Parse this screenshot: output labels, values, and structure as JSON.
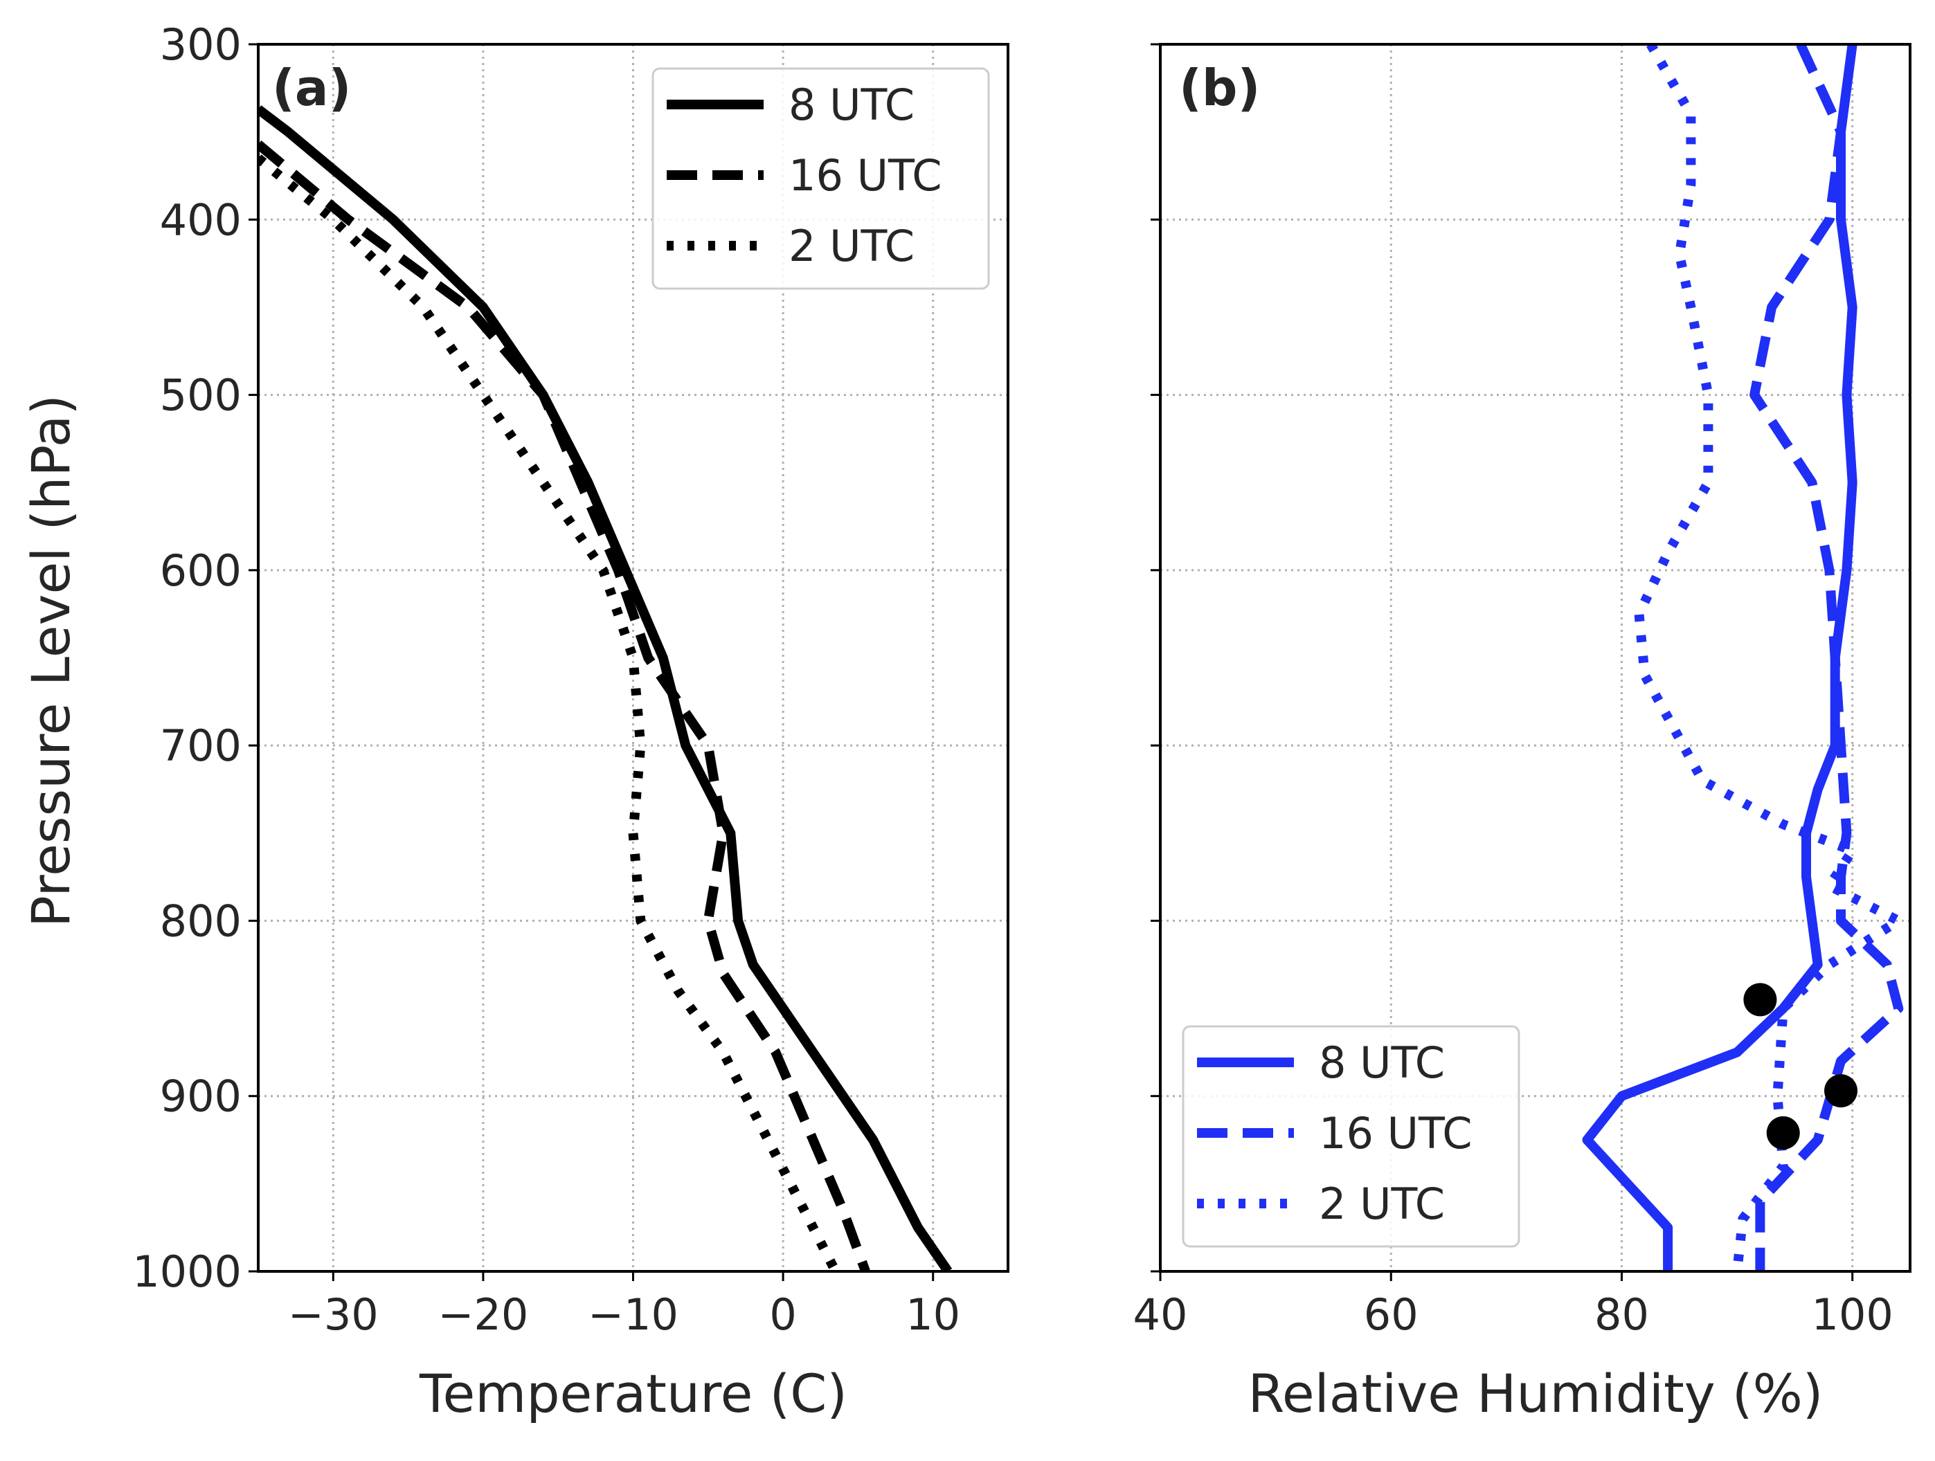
{
  "chart_data": [
    {
      "type": "line",
      "panel_label": "(a)",
      "xlabel": "Temperature (C)",
      "ylabel": "Pressure Level (hPa)",
      "xlim": [
        -35,
        15
      ],
      "ylim": [
        1000,
        300
      ],
      "xticks": [
        -30,
        -20,
        -10,
        0,
        10
      ],
      "xtick_labels": [
        "−30",
        "−20",
        "−10",
        "0",
        "10"
      ],
      "yticks": [
        300,
        400,
        500,
        600,
        700,
        800,
        900,
        1000
      ],
      "ytick_labels": [
        "300",
        "400",
        "500",
        "600",
        "700",
        "800",
        "900",
        "1000"
      ],
      "grid": true,
      "legend": "top-right",
      "color": "#000000",
      "series": [
        {
          "name": "8 UTC",
          "style": "solid",
          "points": [
            [
              -35,
              337
            ],
            [
              -33,
              350
            ],
            [
              -26,
              400
            ],
            [
              -20,
              450
            ],
            [
              -16,
              500
            ],
            [
              -13,
              550
            ],
            [
              -10.5,
              600
            ],
            [
              -8,
              650
            ],
            [
              -6.5,
              700
            ],
            [
              -3.5,
              750
            ],
            [
              -3,
              800
            ],
            [
              -2,
              825
            ],
            [
              2,
              875
            ],
            [
              6,
              925
            ],
            [
              9,
              975
            ],
            [
              11,
              1000
            ]
          ]
        },
        {
          "name": "16 UTC",
          "style": "dashed",
          "points": [
            [
              -35,
              357
            ],
            [
              -29,
              400
            ],
            [
              -21,
              450
            ],
            [
              -16,
              500
            ],
            [
              -13.5,
              550
            ],
            [
              -11,
              600
            ],
            [
              -9,
              650
            ],
            [
              -5,
              700
            ],
            [
              -4,
              750
            ],
            [
              -5,
              800
            ],
            [
              -4,
              830
            ],
            [
              -0.5,
              875
            ],
            [
              2,
              925
            ],
            [
              4,
              965
            ],
            [
              5.5,
              1000
            ]
          ]
        },
        {
          "name": "2 UTC",
          "style": "dotted",
          "points": [
            [
              -35,
              365
            ],
            [
              -30,
              400
            ],
            [
              -24,
              450
            ],
            [
              -20,
              500
            ],
            [
              -16,
              550
            ],
            [
              -12,
              600
            ],
            [
              -10,
              650
            ],
            [
              -9.5,
              700
            ],
            [
              -10,
              750
            ],
            [
              -9.5,
              800
            ],
            [
              -7,
              840
            ],
            [
              -4,
              875
            ],
            [
              -1,
              925
            ],
            [
              2,
              975
            ],
            [
              3.5,
              1000
            ]
          ]
        }
      ]
    },
    {
      "type": "line",
      "panel_label": "(b)",
      "xlabel": "Relative Humidity (%)",
      "ylabel": "",
      "xlim": [
        40,
        105
      ],
      "ylim": [
        1000,
        300
      ],
      "xticks": [
        40,
        60,
        80,
        100
      ],
      "xtick_labels": [
        "40",
        "60",
        "80",
        "100"
      ],
      "yticks": [
        300,
        400,
        500,
        600,
        700,
        800,
        900,
        1000
      ],
      "grid": true,
      "legend": "bottom-left",
      "color": "#1f2ff5",
      "series": [
        {
          "name": "8 UTC",
          "style": "solid",
          "points": [
            [
              100,
              300
            ],
            [
              99,
              350
            ],
            [
              99,
              400
            ],
            [
              100,
              450
            ],
            [
              99.5,
              500
            ],
            [
              100,
              550
            ],
            [
              99.5,
              600
            ],
            [
              98.5,
              650
            ],
            [
              98.5,
              700
            ],
            [
              97,
              725
            ],
            [
              96,
              750
            ],
            [
              96,
              775
            ],
            [
              97,
              825
            ],
            [
              94,
              850
            ],
            [
              90,
              875
            ],
            [
              80,
              900
            ],
            [
              77,
              925
            ],
            [
              84,
              975
            ],
            [
              84,
              1000
            ]
          ]
        },
        {
          "name": "16 UTC",
          "style": "dashed",
          "points": [
            [
              95.5,
              300
            ],
            [
              99,
              350
            ],
            [
              98,
              400
            ],
            [
              93,
              450
            ],
            [
              91.5,
              500
            ],
            [
              96.5,
              550
            ],
            [
              98,
              600
            ],
            [
              98.5,
              650
            ],
            [
              99,
              700
            ],
            [
              99.5,
              750
            ],
            [
              99,
              775
            ],
            [
              99,
              800
            ],
            [
              103,
              825
            ],
            [
              104,
              850
            ],
            [
              99,
              880
            ],
            [
              97,
              925
            ],
            [
              92,
              960
            ],
            [
              92,
              1000
            ]
          ]
        },
        {
          "name": "2 UTC",
          "style": "dotted",
          "points": [
            [
              82.5,
              300
            ],
            [
              86,
              340
            ],
            [
              86,
              380
            ],
            [
              85,
              420
            ],
            [
              86,
              450
            ],
            [
              87.5,
              500
            ],
            [
              87.5,
              550
            ],
            [
              84,
              590
            ],
            [
              81.5,
              625
            ],
            [
              82,
              660
            ],
            [
              87,
              720
            ],
            [
              94,
              745
            ],
            [
              100,
              760
            ],
            [
              98,
              780
            ],
            [
              104,
              800
            ],
            [
              98,
              825
            ],
            [
              94,
              850
            ],
            [
              93.5,
              900
            ],
            [
              94,
              940
            ],
            [
              90.5,
              970
            ],
            [
              90,
              1000
            ]
          ]
        }
      ],
      "markers": [
        [
          92,
          845
        ],
        [
          99,
          897
        ],
        [
          94,
          921
        ]
      ]
    }
  ]
}
